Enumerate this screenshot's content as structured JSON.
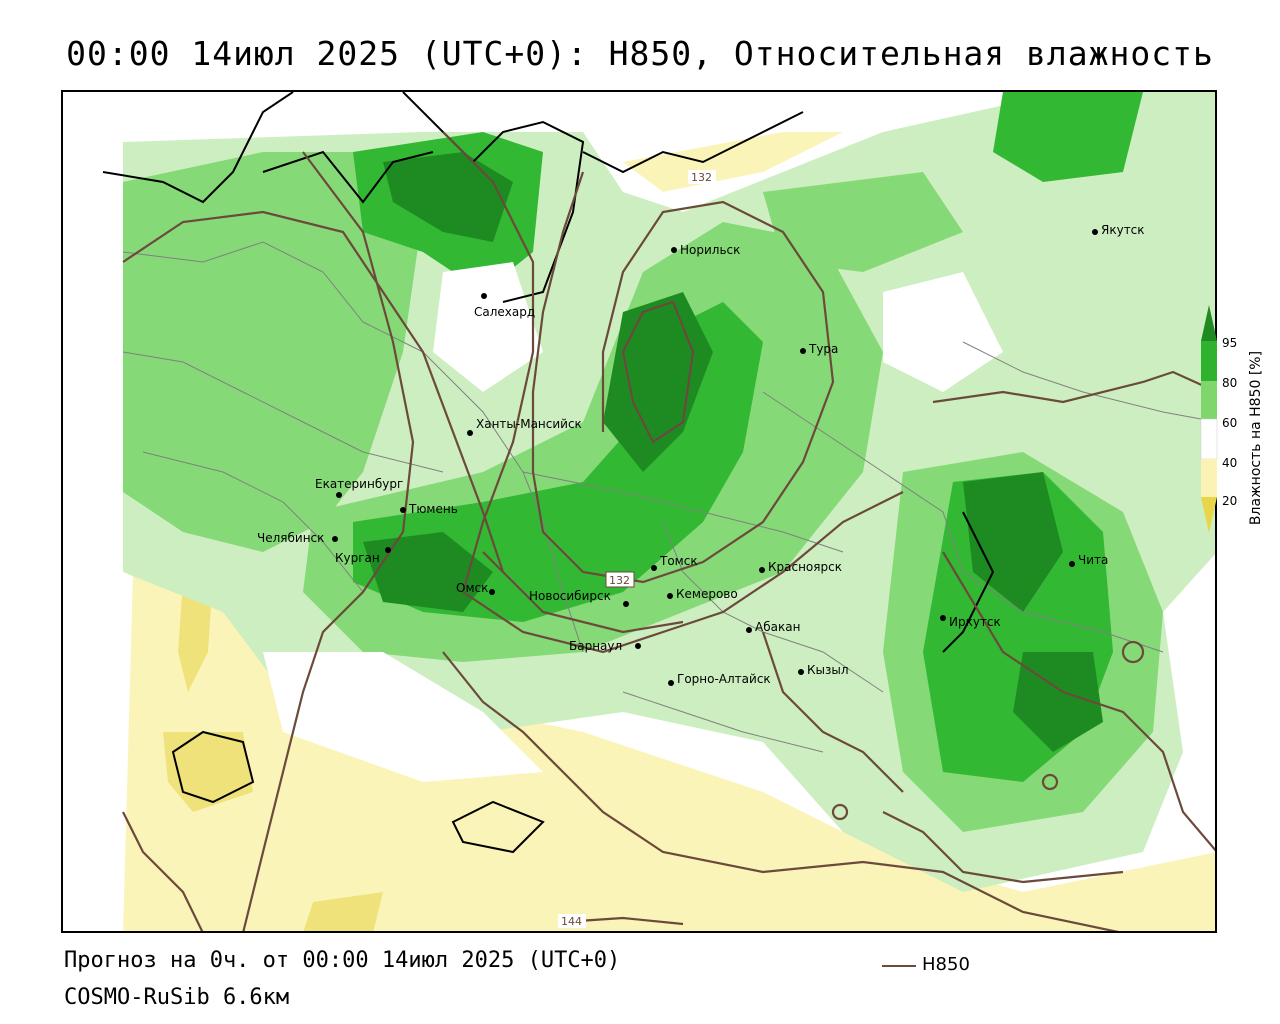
{
  "title": "00:00 14июл 2025 (UTC+0): H850, Относительная влажность",
  "footer": {
    "forecast": "Прогноз на 0ч. от 00:00 14июл 2025 (UTC+0)",
    "model": "COSMO-RuSib 6.6км",
    "legend_line_label": "H850"
  },
  "colorbar": {
    "title": "Влажность на H850 [%]",
    "ticks": [
      "95",
      "80",
      "60",
      "40",
      "20"
    ],
    "colors": [
      "#1f8a1f",
      "#2fb32f",
      "#7fd66b",
      "#c8f0b8",
      "#ffffff",
      "#fbf3b4",
      "#e8d64a"
    ]
  },
  "colors": {
    "isohypse": "#6b4a3c",
    "humid_95": "#1e8b22",
    "humid_80": "#33b833",
    "humid_60": "#86d977",
    "humid_light": "#cdeec0",
    "dry_40": "#fbf4b8",
    "dry_20": "#efe27a"
  },
  "isohypse_labels": [
    "132",
    "132",
    "144"
  ],
  "cities": [
    {
      "name": "Якутск"
    },
    {
      "name": "Норильск"
    },
    {
      "name": "Салехард"
    },
    {
      "name": "Тура"
    },
    {
      "name": "Ханты-Мансийск"
    },
    {
      "name": "Екатеринбург"
    },
    {
      "name": "Тюмень"
    },
    {
      "name": "Челябинск"
    },
    {
      "name": "Курган"
    },
    {
      "name": "Омск"
    },
    {
      "name": "Томск"
    },
    {
      "name": "Новосибирск"
    },
    {
      "name": "Кемерово"
    },
    {
      "name": "Красноярск"
    },
    {
      "name": "Абакан"
    },
    {
      "name": "Барнаул"
    },
    {
      "name": "Горно-Алтайск"
    },
    {
      "name": "Кызыл"
    },
    {
      "name": "Иркутск"
    },
    {
      "name": "Чита"
    }
  ]
}
